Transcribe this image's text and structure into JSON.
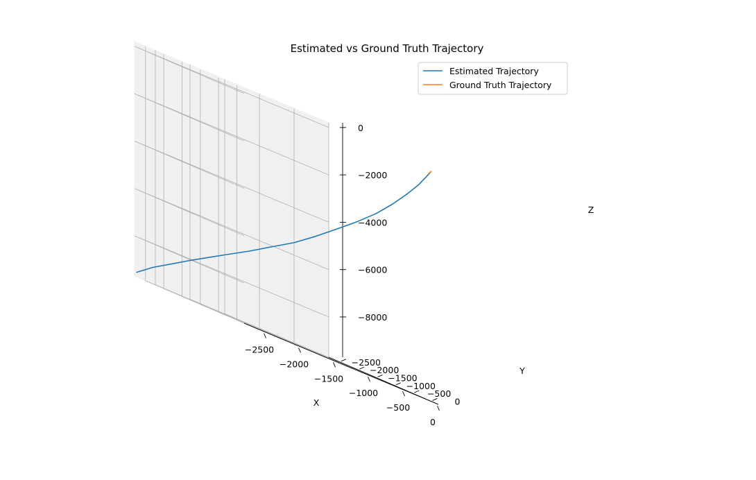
{
  "chart_data": {
    "type": "line",
    "projection": "3d",
    "title": "Estimated vs Ground Truth Trajectory",
    "xlabel": "X",
    "ylabel": "Y",
    "zlabel": "Z",
    "xlim": [
      -2800,
      0
    ],
    "ylim": [
      -2800,
      200
    ],
    "zlim": [
      -9700,
      200
    ],
    "xticks": [
      -2500,
      -2000,
      -1500,
      -1000,
      -500,
      0
    ],
    "xtick_labels": [
      "−2500",
      "−2000",
      "−1500",
      "−1000",
      "−500",
      "0"
    ],
    "yticks": [
      -2500,
      -2000,
      -1500,
      -1000,
      -500,
      0
    ],
    "ytick_labels": [
      "−2500",
      "−2000",
      "−1500",
      "−1000",
      "−500",
      "0"
    ],
    "zticks": [
      -8000,
      -6000,
      -4000,
      -2000,
      0
    ],
    "ztick_labels": [
      "−8000",
      "−6000",
      "−4000",
      "−2000",
      "0"
    ],
    "grid": true,
    "legend_position": "top-right",
    "series": [
      {
        "name": "Estimated Trajectory",
        "color": "#1f77b4",
        "x": [
          0,
          -40,
          -110,
          -210,
          -330,
          -480,
          -660,
          -860,
          -1050,
          -1250,
          -1460,
          -1650,
          -1830,
          -2000,
          -2180,
          -2380,
          -2600,
          -2790
        ],
        "y": [
          0,
          -50,
          -140,
          -270,
          -420,
          -590,
          -780,
          -980,
          -1170,
          -1380,
          -1620,
          -1840,
          -2060,
          -2240,
          -2400,
          -2550,
          -2670,
          -2760
        ],
        "z": [
          0,
          -300,
          -800,
          -1400,
          -2050,
          -2750,
          -3450,
          -4150,
          -4800,
          -5450,
          -6050,
          -6600,
          -7100,
          -7550,
          -8000,
          -8500,
          -9000,
          -9500
        ]
      },
      {
        "name": "Ground Truth Trajectory",
        "color": "#ff7f0e",
        "x": [
          0,
          -20
        ],
        "y": [
          0,
          -25
        ],
        "z": [
          0,
          -120
        ]
      }
    ]
  }
}
